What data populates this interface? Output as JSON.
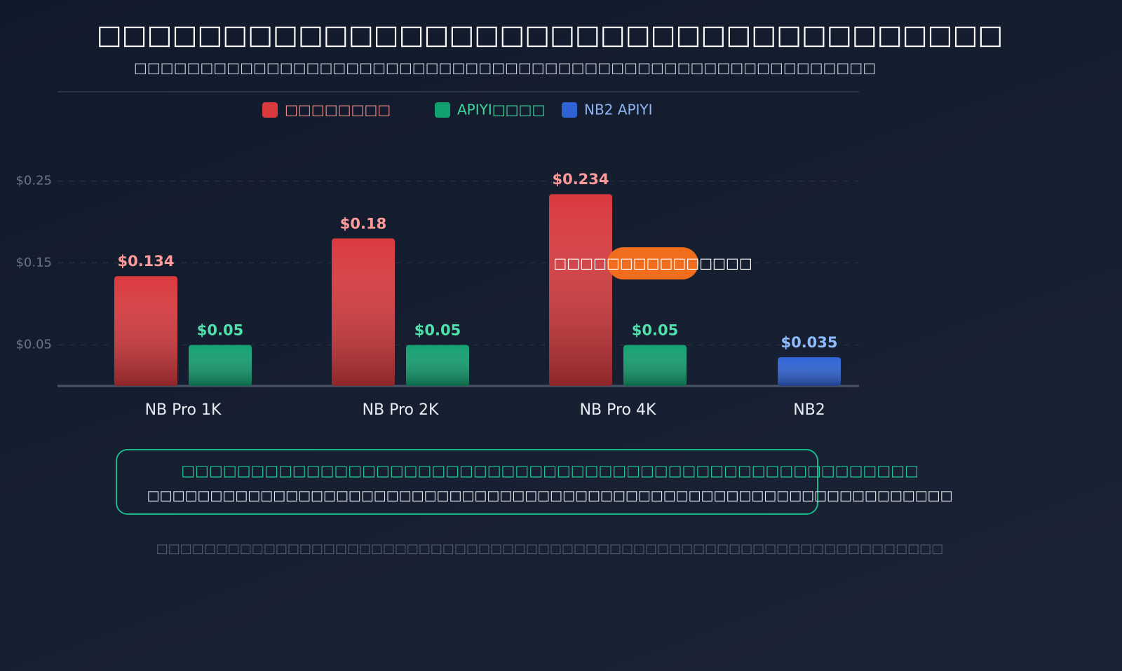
{
  "chart_data": {
    "type": "bar",
    "title": "□□□□□□□□□□□□□□□□□□□□□□□□□□□□□□□□□□□□",
    "subtitle": "□□□□□□□□□□□□□□□□□□□□□□□□□□□□□□□□□□□□□□□□□□□□□□□□□□□□□□□□",
    "categories": [
      "NB Pro 1K",
      "NB Pro 2K",
      "NB Pro 4K",
      "NB2"
    ],
    "series": [
      {
        "name": "□□□□□□□□",
        "color": "#d93a3e",
        "values": [
          0.134,
          0.18,
          0.234,
          null
        ],
        "value_labels": [
          "$0.134",
          "$0.18",
          "$0.234",
          null
        ]
      },
      {
        "name": "APIYI□□□□",
        "color": "#13a070",
        "values": [
          0.05,
          0.05,
          0.05,
          null
        ],
        "value_labels": [
          "$0.05",
          "$0.05",
          "$0.05",
          null
        ]
      },
      {
        "name": "NB2 APIYI",
        "color": "#2f63d6",
        "values": [
          null,
          null,
          null,
          0.035
        ],
        "value_labels": [
          null,
          null,
          null,
          "$0.035"
        ]
      }
    ],
    "ylim": [
      0,
      0.3
    ],
    "yticks": [
      {
        "value": 0.05,
        "label": "$0.05"
      },
      {
        "value": 0.15,
        "label": "$0.15"
      },
      {
        "value": 0.25,
        "label": "$0.25"
      }
    ],
    "grid": true,
    "legend": "top",
    "annotation": "□□□□□□□□□□□□□□□",
    "notes": [
      "□□□□□□□□□□□□□□□□□□□□□□□□□□□□□□□□□□□□□□□□□□□□□□□□□□□□□",
      "□□□□□□□□□□□□□□□□□□□□□□□□□□□□□□□□□□□□□□□□□□□□□□□□□□□□□□□□□□□□□□□□"
    ],
    "footnote": "□□□□□□□□□□□□□□□□□□□□□□□□□□□□□□□□□□□□□□□□□□□□□□□□□□□□□□□□□□□□□□□□□□"
  }
}
